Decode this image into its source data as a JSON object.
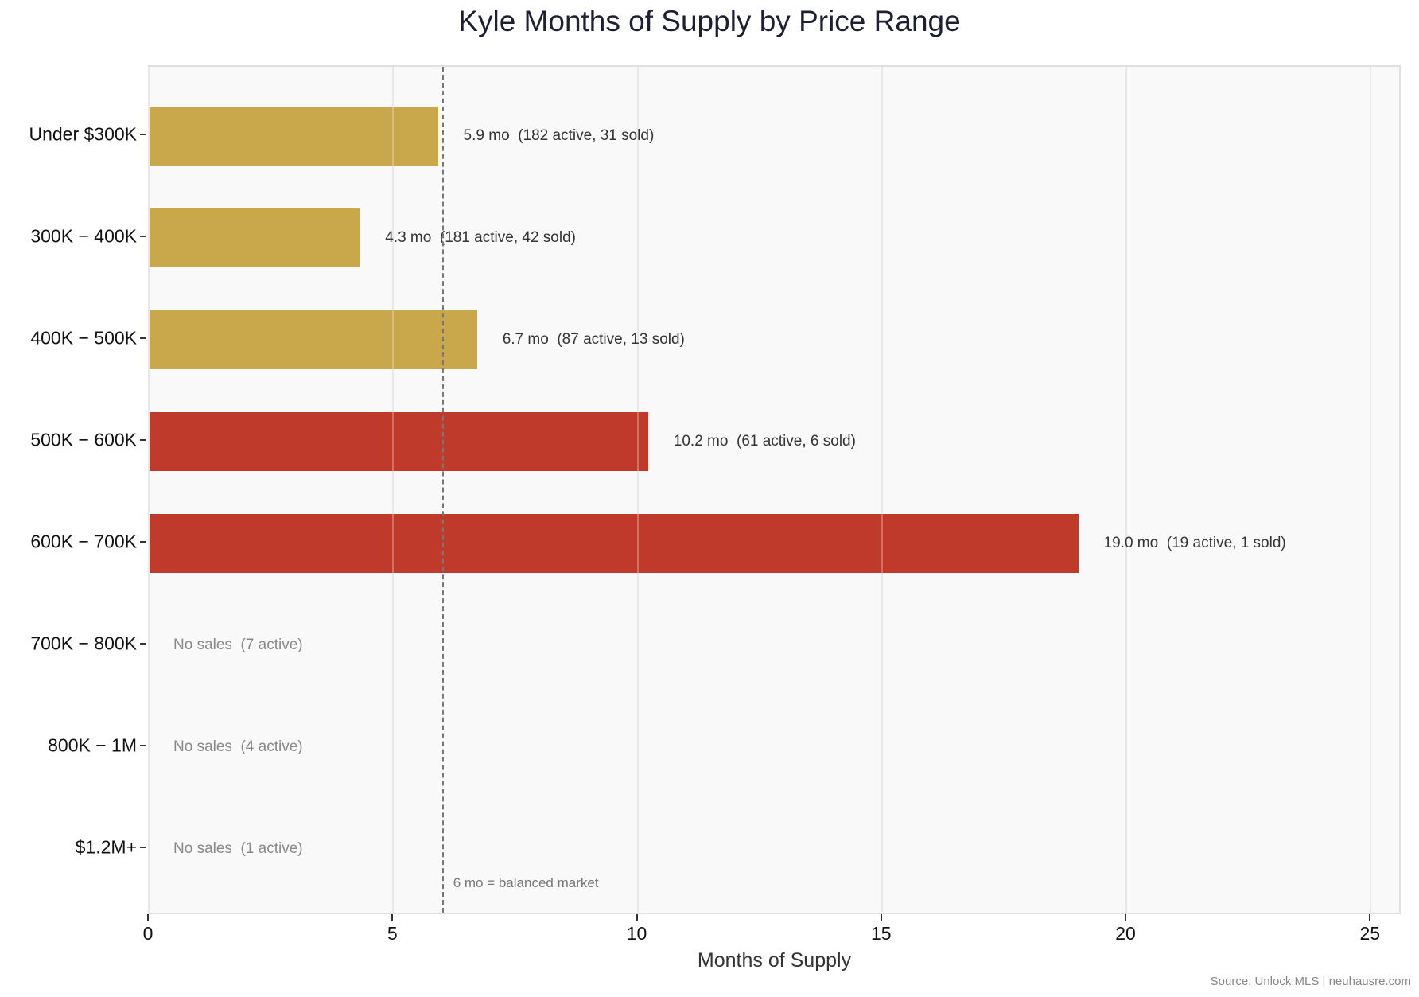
{
  "chart_data": {
    "type": "bar",
    "orientation": "horizontal",
    "title": "Kyle Months of Supply by Price Range",
    "xlabel": "Months of Supply",
    "ylabel": "",
    "xlim": [
      0,
      25.65
    ],
    "xticks": [
      0,
      5,
      10,
      15,
      20,
      25
    ],
    "grid": "vertical",
    "categories": [
      "Under $300K",
      "300K − 400K",
      "400K − 500K",
      "500K − 600K",
      "600K − 700K",
      "700K − 800K",
      "800K − 1M",
      "$1.2M+"
    ],
    "category_display": [
      "Under $300K",
      "300K − 400K",
      "400K − 500K",
      "500K − 600K",
      "600K − 700K",
      "700K − 800K",
      "800K − 1M",
      "$1.2M+"
    ],
    "values": [
      5.9,
      4.3,
      6.7,
      10.2,
      19.0,
      null,
      null,
      null
    ],
    "active": [
      182,
      181,
      87,
      61,
      19,
      7,
      4,
      1
    ],
    "sold": [
      31,
      42,
      13,
      6,
      1,
      0,
      0,
      0
    ],
    "bar_colors": [
      "#c8a84b",
      "#c8a84b",
      "#c8a84b",
      "#bf3a2b",
      "#bf3a2b",
      null,
      null,
      null
    ],
    "annotations": [
      "5.9 mo  (182 active, 31 sold)",
      "4.3 mo  (181 active, 42 sold)",
      "6.7 mo  (87 active, 13 sold)",
      "10.2 mo  (61 active, 6 sold)",
      "19.0 mo  (19 active, 1 sold)",
      "No sales  (7 active)",
      "No sales  (4 active)",
      "No sales  (1 active)"
    ],
    "reference_line": {
      "x": 6,
      "style": "dashed",
      "label": "6 mo = balanced market"
    },
    "source": "Source: Unlock MLS | neuhausre.com"
  },
  "colors": {
    "balanced": "#c8a84b",
    "oversupply": "#bf3a2b",
    "plot_bg": "#f9f9f9"
  }
}
